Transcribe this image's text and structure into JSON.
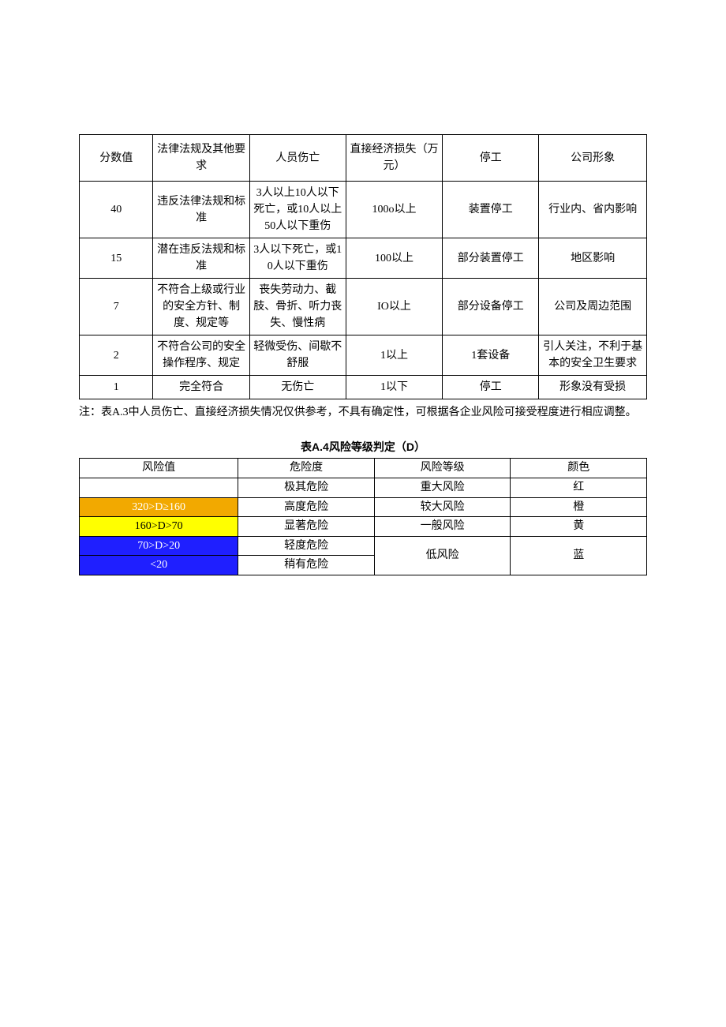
{
  "table1": {
    "columns": [
      "分数值",
      "法律法规及其他要求",
      "人员伤亡",
      "直接经济损失（万元）",
      "停工",
      "公司形象"
    ],
    "col_widths": [
      "13%",
      "17%",
      "17%",
      "17%",
      "17%",
      "19%"
    ],
    "rows": [
      [
        "40",
        "违反法律法规和标准",
        "3人以上10人以下死亡，或10人以上50人以下重伤",
        "100o以上",
        "装置停工",
        "行业内、省内影响"
      ],
      [
        "15",
        "潜在违反法规和标准",
        "3人以下死亡，或10人以下重伤",
        "100以上",
        "部分装置停工",
        "地区影响"
      ],
      [
        "7",
        "不符合上级或行业的安全方针、制度、规定等",
        "丧失劳动力、截肢、骨折、听力丧失、慢性病",
        "IO以上",
        "部分设备停工",
        "公司及周边范围"
      ],
      [
        "2",
        "不符合公司的安全操作程序、规定",
        "轻微受伤、间歇不舒服",
        "1以上",
        "1套设备",
        "引人关注，不利于基本的安全卫生要求"
      ],
      [
        "1",
        "完全符合",
        "无伤亡",
        "1以下",
        "停工",
        "形象没有受损"
      ]
    ]
  },
  "note": "注：表A.3中人员伤亡、直接经济损失情况仅供参考，不具有确定性，可根据各企业风险可接受程度进行相应调整。",
  "table2": {
    "title": "表A.4风险等级判定（D）",
    "columns": [
      "风险值",
      "危险度",
      "风险等级",
      "颜色"
    ],
    "col_widths": [
      "28%",
      "24%",
      "24%",
      "24%"
    ],
    "rows": [
      {
        "value": "",
        "value_class": "",
        "danger": "极其危险",
        "level": "重大风险",
        "color": "红",
        "rowspan_level": 1
      },
      {
        "value": "320>D≥160",
        "value_class": "c-orange",
        "danger": "高度危险",
        "level": "较大风险",
        "color": "橙",
        "rowspan_level": 1
      },
      {
        "value": "160>D>70",
        "value_class": "c-yellow",
        "danger": "显著危险",
        "level": "一般风险",
        "color": "黄",
        "rowspan_level": 1
      },
      {
        "value": "70>D>20",
        "value_class": "c-blue1",
        "danger": "轻度危险",
        "level": "低风险",
        "color": "蓝",
        "rowspan_level": 2
      },
      {
        "value": "<20",
        "value_class": "c-blue2",
        "danger": "稍有危险",
        "level": null,
        "color": null,
        "rowspan_level": 0
      }
    ]
  }
}
